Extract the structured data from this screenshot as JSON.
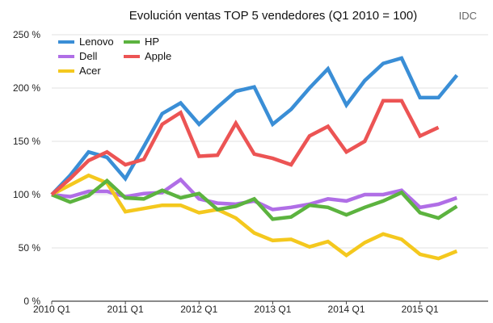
{
  "chart_data": {
    "type": "line",
    "title": "Evolución ventas TOP 5 vendedores (Q1 2010 = 100)",
    "source": "IDC",
    "x_tick_labels": [
      "2010 Q1",
      "2011 Q1",
      "2012 Q1",
      "2013 Q1",
      "2014 Q1",
      "2015 Q1"
    ],
    "x_tick_positions": [
      0,
      4,
      8,
      12,
      16,
      20
    ],
    "y_tick_labels": [
      "0 %",
      "50 %",
      "100 %",
      "150 %",
      "200 %",
      "250 %"
    ],
    "y_ticks": [
      0,
      50,
      100,
      150,
      200,
      250
    ],
    "xlim": [
      0,
      23.7
    ],
    "ylim": [
      0,
      250
    ],
    "grid": "horizontal",
    "legend": "top-left",
    "series": [
      {
        "name": "Lenovo",
        "color": "#3a8ed6",
        "values": [
          100,
          118,
          140,
          135,
          115,
          145,
          176,
          186,
          166,
          182,
          197,
          201,
          166,
          180,
          200,
          218,
          184,
          207,
          223,
          228,
          191,
          191,
          212
        ]
      },
      {
        "name": "Dell",
        "color": "#b06ee6",
        "values": [
          100,
          98,
          103,
          103,
          98,
          101,
          102,
          114,
          96,
          92,
          91,
          94,
          86,
          88,
          91,
          96,
          94,
          100,
          100,
          104,
          88,
          91,
          97
        ]
      },
      {
        "name": "Acer",
        "color": "#f4c81e",
        "values": [
          100,
          109,
          118,
          111,
          84,
          87,
          90,
          90,
          83,
          86,
          78,
          64,
          57,
          58,
          51,
          56,
          43,
          55,
          63,
          58,
          44,
          40,
          47
        ]
      },
      {
        "name": "HP",
        "color": "#5cb33f",
        "values": [
          100,
          93,
          99,
          113,
          97,
          96,
          104,
          97,
          101,
          86,
          89,
          96,
          77,
          79,
          90,
          88,
          81,
          88,
          94,
          102,
          83,
          78,
          89
        ]
      },
      {
        "name": "Apple",
        "color": "#ec5454",
        "values": [
          100,
          115,
          132,
          140,
          128,
          133,
          166,
          177,
          136,
          137,
          167,
          138,
          134,
          128,
          155,
          164,
          140,
          150,
          188,
          188,
          155,
          163
        ]
      }
    ]
  }
}
